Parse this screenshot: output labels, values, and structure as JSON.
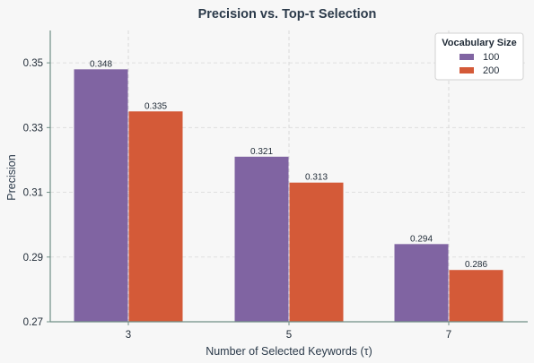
{
  "chart_data": {
    "type": "bar",
    "title": "Precision vs. Top-τ Selection",
    "xlabel": "Number of Selected Keywords (τ)",
    "ylabel": "Precision",
    "categories": [
      "3",
      "5",
      "7"
    ],
    "series": [
      {
        "name": "100",
        "values": [
          0.348,
          0.321,
          0.294
        ],
        "color": "#8064a2"
      },
      {
        "name": "200",
        "values": [
          0.335,
          0.313,
          0.286
        ],
        "color": "#d45a38"
      }
    ],
    "data_labels": [
      [
        "0.348",
        "0.321",
        "0.294"
      ],
      [
        "0.335",
        "0.313",
        "0.286"
      ]
    ],
    "ylim": [
      0.27,
      0.36
    ],
    "yticks": [
      "0.27",
      "0.29",
      "0.31",
      "0.33",
      "0.35"
    ],
    "grid": true,
    "legend": {
      "title": "Vocabulary Size",
      "placement": "top-right"
    }
  }
}
